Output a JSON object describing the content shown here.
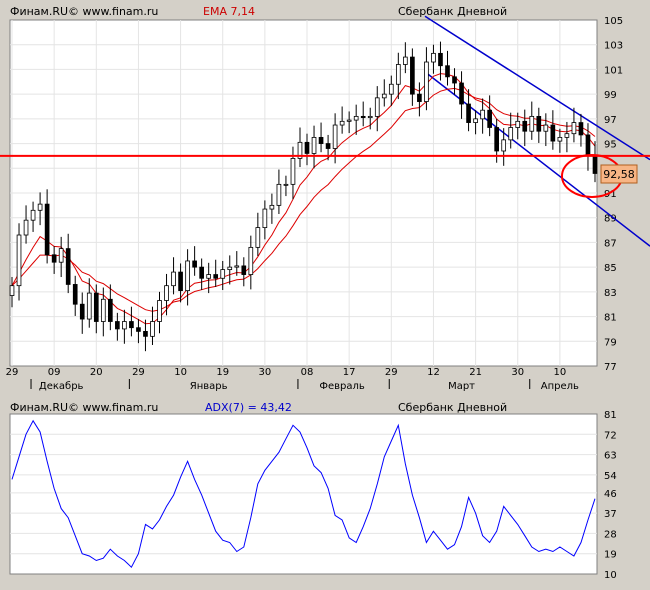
{
  "chart_data": [
    {
      "type": "candlestick",
      "source": "Финам.RU© www.finam.ru",
      "indicator_label": "EMA 7,14",
      "title": "Сбербанк Дневной",
      "ylim": [
        77,
        105
      ],
      "y_ticks": [
        77,
        79,
        81,
        83,
        85,
        87,
        89,
        91,
        93,
        95,
        97,
        99,
        101,
        103,
        105
      ],
      "x_ticks": [
        "29",
        "09",
        "20",
        "29",
        "10",
        "19",
        "30",
        "08",
        "17",
        "29",
        "12",
        "21",
        "30",
        "10"
      ],
      "month_labels": [
        "Декабрь",
        "Январь",
        "Февраль",
        "Март",
        "Апрель"
      ],
      "horizontal_level": 94.0,
      "last_price_label": "92,58",
      "channel_lines": [
        {
          "name": "upper",
          "from": [
            0,
            105.3
          ],
          "to": [
            1,
            93.7
          ]
        },
        {
          "name": "lower",
          "from": [
            0,
            100.8
          ],
          "to": [
            1,
            86.7
          ]
        }
      ],
      "closes": [
        83.5,
        87.6,
        88.8,
        89.6,
        90.1,
        86.0,
        85.4,
        86.5,
        83.6,
        82.0,
        80.8,
        82.9,
        80.6,
        82.4,
        80.6,
        80.0,
        80.6,
        80.1,
        79.8,
        79.4,
        80.6,
        82.3,
        83.5,
        84.6,
        83.1,
        85.5,
        85.0,
        84.1,
        84.4,
        84.1,
        84.8,
        85.0,
        85.1,
        84.4,
        86.6,
        88.2,
        89.7,
        90.0,
        91.7,
        91.7,
        93.8,
        95.1,
        94.2,
        95.5,
        95.0,
        94.6,
        96.5,
        96.8,
        96.9,
        97.2,
        97.1,
        97.2,
        98.7,
        99.0,
        99.8,
        101.4,
        102.0,
        99.0,
        98.4,
        101.6,
        102.3,
        101.3,
        100.4,
        99.9,
        98.2,
        96.7,
        97.0,
        97.7,
        96.3,
        94.4,
        95.3,
        96.3,
        96.8,
        96.0,
        97.2,
        96.0,
        96.5,
        95.2,
        95.5,
        95.8,
        96.7,
        95.7,
        94.0,
        92.58
      ]
    },
    {
      "type": "line",
      "source": "Финам.RU© www.finam.ru",
      "indicator_label": "ADX(7) = 43,42",
      "title": "Сбербанк Дневной",
      "ylim": [
        10,
        81
      ],
      "y_ticks": [
        10,
        19,
        28,
        37,
        46,
        54,
        63,
        72,
        81
      ],
      "values": [
        52,
        62,
        72,
        78,
        73,
        60,
        48,
        39,
        35,
        27,
        19,
        18,
        16,
        17,
        21,
        18,
        16,
        13,
        19,
        32,
        30,
        34,
        40,
        45,
        53,
        60,
        52,
        45,
        37,
        29,
        25,
        24,
        20,
        22,
        35,
        50,
        56,
        60,
        64,
        70,
        76,
        73,
        66,
        58,
        55,
        48,
        36,
        34,
        26,
        24,
        31,
        39,
        50,
        62,
        69,
        76,
        59,
        45,
        35,
        24,
        29,
        25,
        21,
        23,
        31,
        44,
        37,
        27,
        24,
        29,
        40,
        36,
        32,
        27,
        22,
        20,
        21,
        20,
        22,
        20,
        18,
        24,
        34,
        43.42
      ]
    }
  ]
}
